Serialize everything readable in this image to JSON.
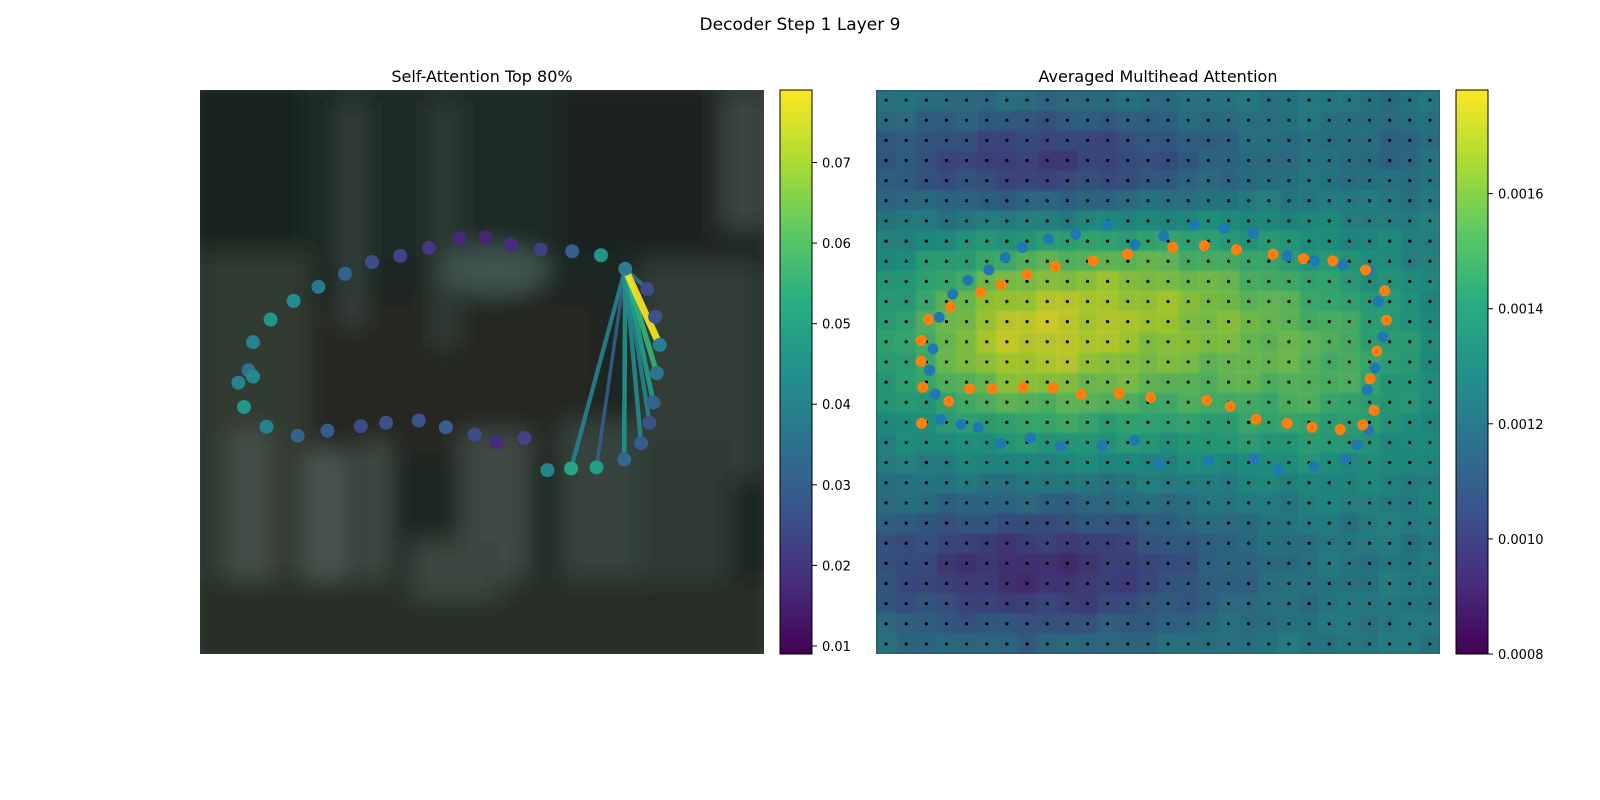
{
  "figure": {
    "title": "Decoder Step 1 Layer 9"
  },
  "chart_data": [
    {
      "type": "scatter",
      "title": "Self-Attention Top 80%",
      "description_of_background": "blurred dark photo",
      "xlim": [
        0,
        1
      ],
      "ylim": [
        0,
        1
      ],
      "axes_visible": false,
      "colormap": "viridis",
      "colorbar": {
        "min": 0.009,
        "max": 0.079,
        "ticks": [
          0.01,
          0.02,
          0.03,
          0.04,
          0.05,
          0.06,
          0.07
        ],
        "tick_labels": [
          "0.01",
          "0.02",
          "0.03",
          "0.04",
          "0.05",
          "0.06",
          "0.07"
        ]
      },
      "query_index": 15,
      "points": [
        {
          "x": 0.086,
          "y": 0.503,
          "v": 0.035
        },
        {
          "x": 0.094,
          "y": 0.553,
          "v": 0.04
        },
        {
          "x": 0.125,
          "y": 0.593,
          "v": 0.045
        },
        {
          "x": 0.166,
          "y": 0.626,
          "v": 0.043
        },
        {
          "x": 0.21,
          "y": 0.651,
          "v": 0.037
        },
        {
          "x": 0.257,
          "y": 0.674,
          "v": 0.031
        },
        {
          "x": 0.305,
          "y": 0.695,
          "v": 0.025
        },
        {
          "x": 0.355,
          "y": 0.706,
          "v": 0.023
        },
        {
          "x": 0.406,
          "y": 0.72,
          "v": 0.02
        },
        {
          "x": 0.46,
          "y": 0.737,
          "v": 0.017
        },
        {
          "x": 0.506,
          "y": 0.739,
          "v": 0.016
        },
        {
          "x": 0.551,
          "y": 0.726,
          "v": 0.018
        },
        {
          "x": 0.604,
          "y": 0.717,
          "v": 0.022
        },
        {
          "x": 0.66,
          "y": 0.714,
          "v": 0.03
        },
        {
          "x": 0.711,
          "y": 0.707,
          "v": 0.045
        },
        {
          "x": 0.754,
          "y": 0.683,
          "v": 0.039
        },
        {
          "x": 0.793,
          "y": 0.647,
          "v": 0.024
        },
        {
          "x": 0.807,
          "y": 0.598,
          "v": 0.027
        },
        {
          "x": 0.815,
          "y": 0.548,
          "v": 0.039
        },
        {
          "x": 0.81,
          "y": 0.498,
          "v": 0.036
        },
        {
          "x": 0.804,
          "y": 0.446,
          "v": 0.031
        },
        {
          "x": 0.797,
          "y": 0.41,
          "v": 0.026
        },
        {
          "x": 0.782,
          "y": 0.374,
          "v": 0.029
        },
        {
          "x": 0.752,
          "y": 0.345,
          "v": 0.032
        },
        {
          "x": 0.703,
          "y": 0.331,
          "v": 0.048
        },
        {
          "x": 0.658,
          "y": 0.329,
          "v": 0.05
        },
        {
          "x": 0.616,
          "y": 0.326,
          "v": 0.041
        },
        {
          "x": 0.575,
          "y": 0.383,
          "v": 0.023
        },
        {
          "x": 0.526,
          "y": 0.375,
          "v": 0.018
        },
        {
          "x": 0.487,
          "y": 0.389,
          "v": 0.025
        },
        {
          "x": 0.436,
          "y": 0.402,
          "v": 0.03
        },
        {
          "x": 0.388,
          "y": 0.414,
          "v": 0.027
        },
        {
          "x": 0.33,
          "y": 0.41,
          "v": 0.027
        },
        {
          "x": 0.285,
          "y": 0.404,
          "v": 0.025
        },
        {
          "x": 0.226,
          "y": 0.396,
          "v": 0.029
        },
        {
          "x": 0.173,
          "y": 0.387,
          "v": 0.031
        },
        {
          "x": 0.118,
          "y": 0.403,
          "v": 0.04
        },
        {
          "x": 0.078,
          "y": 0.438,
          "v": 0.046
        },
        {
          "x": 0.068,
          "y": 0.481,
          "v": 0.04
        },
        {
          "x": 0.094,
          "y": 0.492,
          "v": 0.042
        }
      ],
      "attention_lines": [
        {
          "to": 25,
          "v": 0.04
        },
        {
          "to": 24,
          "v": 0.03
        },
        {
          "to": 23,
          "v": 0.045
        },
        {
          "to": 22,
          "v": 0.042
        },
        {
          "to": 21,
          "v": 0.04
        },
        {
          "to": 20,
          "v": 0.048
        },
        {
          "to": 19,
          "v": 0.055
        },
        {
          "to": 18,
          "v": 0.079
        },
        {
          "to": 16,
          "v": 0.036
        }
      ]
    },
    {
      "type": "heatmap",
      "title": "Averaged Multihead Attention",
      "axes_visible": false,
      "colormap": "viridis",
      "colorbar": {
        "min": 0.0008,
        "max": 0.00178,
        "ticks": [
          0.0008,
          0.001,
          0.0012,
          0.0014,
          0.0016
        ],
        "tick_labels": [
          "0.0008",
          "0.0010",
          "0.0012",
          "0.0014",
          "0.0016"
        ]
      },
      "grid_size": [
        28,
        28
      ],
      "heatmap_overlay_alpha": 0.75,
      "blue_points": [
        [
          0.105,
          0.461
        ],
        [
          0.095,
          0.503
        ],
        [
          0.101,
          0.541
        ],
        [
          0.112,
          0.597
        ],
        [
          0.136,
          0.638
        ],
        [
          0.163,
          0.663
        ],
        [
          0.2,
          0.681
        ],
        [
          0.229,
          0.703
        ],
        [
          0.259,
          0.721
        ],
        [
          0.306,
          0.736
        ],
        [
          0.354,
          0.744
        ],
        [
          0.41,
          0.76
        ],
        [
          0.459,
          0.726
        ],
        [
          0.51,
          0.741
        ],
        [
          0.565,
          0.762
        ],
        [
          0.617,
          0.755
        ],
        [
          0.669,
          0.746
        ],
        [
          0.729,
          0.706
        ],
        [
          0.777,
          0.697
        ],
        [
          0.828,
          0.69
        ],
        [
          0.875,
          0.681
        ],
        [
          0.89,
          0.625
        ],
        [
          0.899,
          0.562
        ],
        [
          0.885,
          0.507
        ],
        [
          0.871,
          0.468
        ],
        [
          0.873,
          0.397
        ],
        [
          0.853,
          0.371
        ],
        [
          0.832,
          0.345
        ],
        [
          0.776,
          0.333
        ],
        [
          0.713,
          0.327
        ],
        [
          0.67,
          0.346
        ],
        [
          0.59,
          0.343
        ],
        [
          0.502,
          0.337
        ],
        [
          0.458,
          0.379
        ],
        [
          0.401,
          0.37
        ],
        [
          0.328,
          0.369
        ],
        [
          0.274,
          0.383
        ],
        [
          0.222,
          0.373
        ],
        [
          0.181,
          0.402
        ],
        [
          0.151,
          0.407
        ],
        [
          0.115,
          0.416
        ]
      ],
      "orange_points": [
        [
          0.083,
          0.473
        ],
        [
          0.08,
          0.519
        ],
        [
          0.08,
          0.556
        ],
        [
          0.093,
          0.593
        ],
        [
          0.132,
          0.615
        ],
        [
          0.185,
          0.642
        ],
        [
          0.222,
          0.655
        ],
        [
          0.268,
          0.673
        ],
        [
          0.318,
          0.687
        ],
        [
          0.385,
          0.697
        ],
        [
          0.446,
          0.709
        ],
        [
          0.526,
          0.721
        ],
        [
          0.582,
          0.724
        ],
        [
          0.639,
          0.717
        ],
        [
          0.704,
          0.709
        ],
        [
          0.758,
          0.701
        ],
        [
          0.81,
          0.697
        ],
        [
          0.868,
          0.681
        ],
        [
          0.902,
          0.644
        ],
        [
          0.905,
          0.592
        ],
        [
          0.888,
          0.537
        ],
        [
          0.876,
          0.488
        ],
        [
          0.883,
          0.432
        ],
        [
          0.863,
          0.406
        ],
        [
          0.823,
          0.398
        ],
        [
          0.773,
          0.402
        ],
        [
          0.729,
          0.409
        ],
        [
          0.674,
          0.416
        ],
        [
          0.628,
          0.439
        ],
        [
          0.586,
          0.45
        ],
        [
          0.487,
          0.455
        ],
        [
          0.431,
          0.462
        ],
        [
          0.364,
          0.461
        ],
        [
          0.314,
          0.472
        ],
        [
          0.261,
          0.473
        ],
        [
          0.206,
          0.47
        ],
        [
          0.166,
          0.47
        ],
        [
          0.129,
          0.448
        ],
        [
          0.081,
          0.409
        ]
      ]
    }
  ]
}
